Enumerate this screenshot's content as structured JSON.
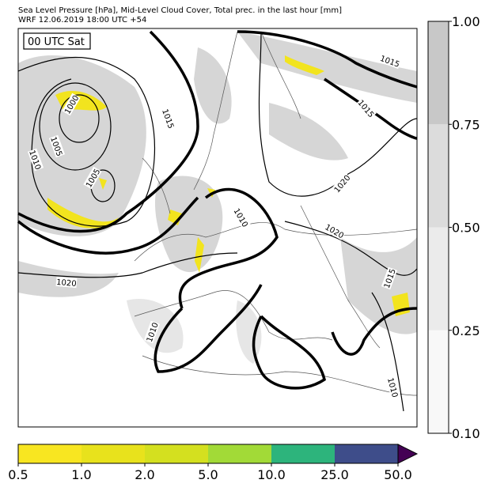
{
  "header": {
    "title": "Sea Level Pressure [hPa], Mid-Level Cloud Cover, Total prec. in the last hour [mm]",
    "subtitle": "WRF 12.06.2019 18:00 UTC +54"
  },
  "map": {
    "time_label": "00 UTC Sat",
    "isobar_labels": [
      "1000",
      "1005",
      "1010",
      "1005",
      "1015",
      "1015",
      "1015",
      "1020",
      "1010",
      "1020",
      "1020",
      "1015",
      "1010",
      "1010"
    ]
  },
  "precip_colorbar": {
    "ticks": [
      "0.5",
      "1.0",
      "2.0",
      "5.0",
      "10.0",
      "25.0",
      "50.0"
    ],
    "colors": [
      "#f8e621",
      "#e8e21c",
      "#d4e01f",
      "#a2da37",
      "#2db47c",
      "#3e4d8a",
      "#440154"
    ]
  },
  "cloud_colorbar": {
    "ticks": [
      "0.10",
      "0.25",
      "0.50",
      "0.75",
      "1.00"
    ],
    "colors": [
      "#f8f8f8",
      "#ebebeb",
      "#dcdcdc",
      "#c8c8c8"
    ]
  }
}
